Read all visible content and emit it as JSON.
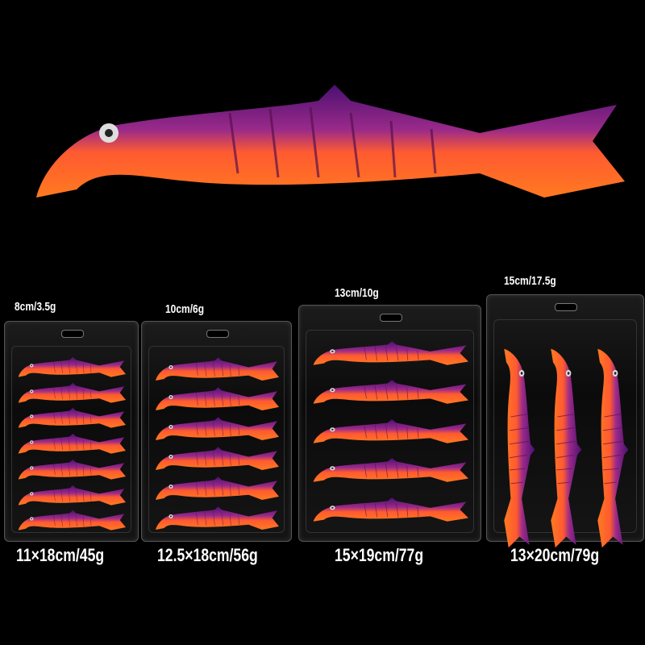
{
  "product": {
    "colors": {
      "top": "#6a1a8a",
      "belly": "#ff6a1a",
      "background": "#000000"
    },
    "packs": [
      {
        "lure_size": "8cm/3.5g",
        "pack_size": "11×18cm/45g",
        "count": 7
      },
      {
        "lure_size": "10cm/6g",
        "pack_size": "12.5×18cm/56g",
        "count": 6
      },
      {
        "lure_size": "13cm/10g",
        "pack_size": "15×19cm/77g",
        "count": 5
      },
      {
        "lure_size": "15cm/17.5g",
        "pack_size": "13×20cm/79g",
        "count": 3
      }
    ]
  }
}
